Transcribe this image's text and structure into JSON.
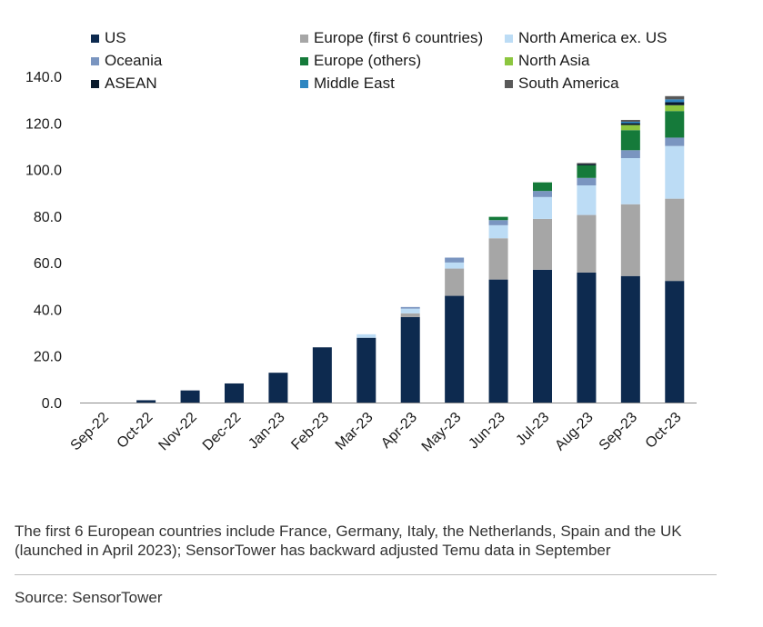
{
  "chart_data": {
    "type": "bar",
    "stacked": true,
    "categories": [
      "Sep-22",
      "Oct-22",
      "Nov-22",
      "Dec-22",
      "Jan-23",
      "Feb-23",
      "Mar-23",
      "Apr-23",
      "May-23",
      "Jun-23",
      "Jul-23",
      "Aug-23",
      "Sep-23",
      "Oct-23"
    ],
    "ylim": [
      0,
      140
    ],
    "yticks": [
      "0.0",
      "20.0",
      "40.0",
      "60.0",
      "80.0",
      "100.0",
      "120.0",
      "140.0"
    ],
    "grid": false,
    "legend_position": "top",
    "series": [
      {
        "name": "US",
        "color": "#0d2a4f",
        "values": [
          0,
          1.0,
          5.2,
          8.2,
          12.8,
          23.7,
          27.8,
          36.7,
          45.8,
          52.8,
          57.0,
          55.8,
          54.3,
          52.2
        ]
      },
      {
        "name": "Europe (first 6 countries)",
        "color": "#a6a6a6",
        "values": [
          0,
          0,
          0,
          0,
          0,
          0,
          0,
          1.6,
          11.7,
          17.7,
          21.8,
          24.7,
          30.8,
          35.3
        ]
      },
      {
        "name": "North America ex. US",
        "color": "#bcdcf5",
        "values": [
          0,
          0,
          0,
          0,
          0,
          0,
          1.5,
          2.0,
          2.6,
          5.6,
          9.4,
          12.7,
          19.8,
          22.6
        ]
      },
      {
        "name": "Oceania",
        "color": "#7a95c0",
        "values": [
          0,
          0,
          0,
          0,
          0,
          0,
          0,
          0.7,
          2.1,
          2.2,
          2.6,
          3.2,
          3.4,
          3.6
        ]
      },
      {
        "name": "Europe (others)",
        "color": "#157a3a",
        "values": [
          0,
          0,
          0,
          0,
          0,
          0,
          0,
          0,
          0,
          1.4,
          3.7,
          5.4,
          8.6,
          11.4
        ]
      },
      {
        "name": "North Asia",
        "color": "#8cc63f",
        "values": [
          0,
          0,
          0,
          0,
          0,
          0,
          0,
          0,
          0,
          0,
          0,
          0,
          2.2,
          2.5
        ]
      },
      {
        "name": "ASEAN",
        "color": "#0a1a2c",
        "values": [
          0,
          0,
          0,
          0,
          0,
          0,
          0,
          0,
          0,
          0,
          0,
          0.6,
          0.8,
          1.3
        ]
      },
      {
        "name": "Middle East",
        "color": "#2e86c1",
        "values": [
          0,
          0,
          0,
          0,
          0,
          0,
          0,
          0,
          0,
          0,
          0,
          0,
          0.6,
          1.2
        ]
      },
      {
        "name": "South America",
        "color": "#595959",
        "values": [
          0,
          0,
          0,
          0,
          0,
          0,
          0,
          0,
          0,
          0,
          0,
          0.4,
          0.8,
          1.4
        ]
      }
    ]
  },
  "footnote": "The first 6 European countries include France, Germany, Italy, the Netherlands, Spain and the UK (launched in April 2023); SensorTower has backward adjusted Temu data in September",
  "source": "Source: SensorTower"
}
